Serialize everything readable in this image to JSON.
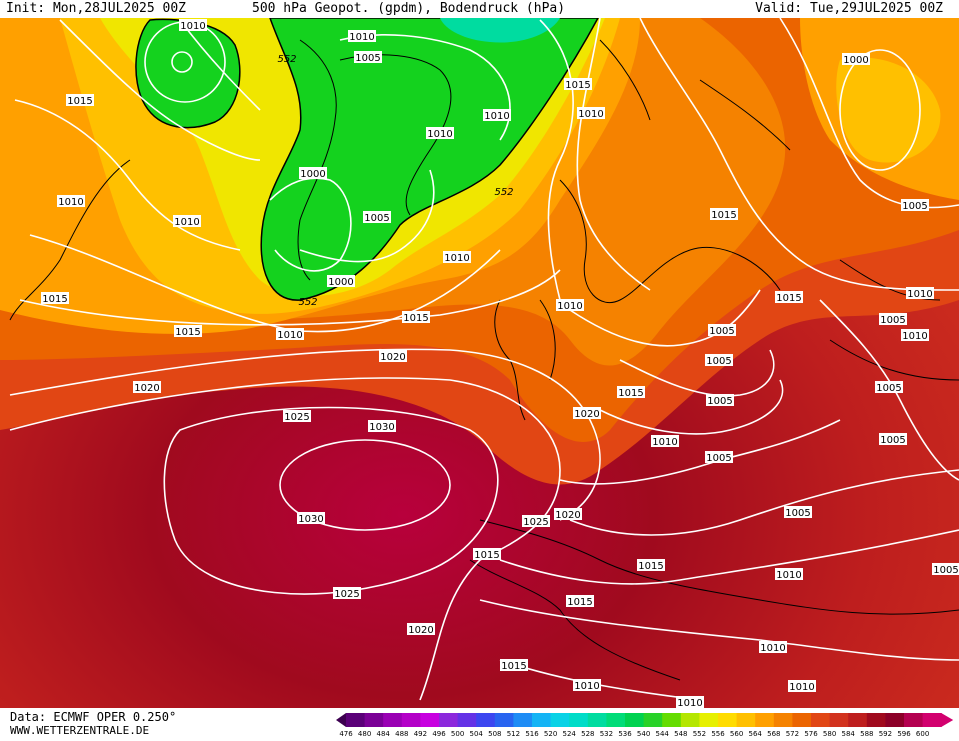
{
  "header": {
    "init": "Init: Mon,28JUL2025 00Z",
    "title": "500 hPa Geopot. (gpdm), Bodendruck (hPa)",
    "valid": "Valid: Tue,29JUL2025 00Z"
  },
  "footer": {
    "source": "Data: ECMWF OPER 0.250°",
    "website": "WWW.WETTERZENTRALE.DE"
  },
  "colorbar": {
    "values": [
      476,
      480,
      484,
      488,
      492,
      496,
      500,
      504,
      508,
      512,
      516,
      520,
      524,
      528,
      532,
      536,
      540,
      544,
      548,
      552,
      556,
      560,
      564,
      568,
      572,
      576,
      580,
      584,
      588,
      592,
      596,
      600
    ],
    "colors": [
      "#3c0050",
      "#5a0078",
      "#7a0096",
      "#9a00b4",
      "#b400c8",
      "#c800e0",
      "#8c28dc",
      "#6432e6",
      "#3c46f0",
      "#2864f0",
      "#1e8cf5",
      "#14b4f5",
      "#0ad2e6",
      "#00dcc8",
      "#00dca0",
      "#00dc78",
      "#00d250",
      "#28d228",
      "#64dc00",
      "#b4e600",
      "#e6f000",
      "#ffdc00",
      "#ffc000",
      "#ffa000",
      "#f58200",
      "#eb6400",
      "#e14614",
      "#d2321e",
      "#be1e1e",
      "#a00a1e",
      "#8c0028",
      "#b40050",
      "#d2006e"
    ]
  },
  "isobar_labels": [
    "1010",
    "1010",
    "1015",
    "552",
    "1005",
    "1010",
    "1010",
    "1000",
    "1015",
    "1015",
    "1010",
    "1010",
    "1010",
    "1005",
    "1000",
    "552",
    "1000",
    "1005",
    "1010",
    "552",
    "1015",
    "1015",
    "1005",
    "1010",
    "1010",
    "1015",
    "1015",
    "1010",
    "1020",
    "1005",
    "1020",
    "1005",
    "1015",
    "1005",
    "1025",
    "1030",
    "1020",
    "1010",
    "1005",
    "1030",
    "1025",
    "1020",
    "1005",
    "1015",
    "1015",
    "1010",
    "1025",
    "1015",
    "1020",
    "1010",
    "1010",
    "1015",
    "1010",
    "1010",
    "1010",
    "1005",
    "1005",
    "1005"
  ]
}
